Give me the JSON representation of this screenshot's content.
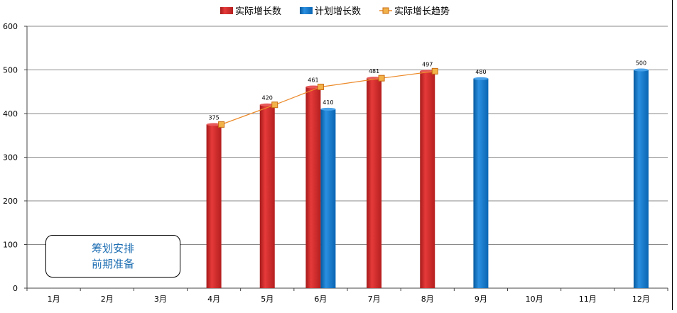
{
  "chart_data": {
    "type": "bar",
    "categories": [
      "1月",
      "2月",
      "3月",
      "4月",
      "5月",
      "6月",
      "7月",
      "8月",
      "9月",
      "10月",
      "11月",
      "12月"
    ],
    "series": [
      {
        "name": "实际增长数",
        "type": "bar",
        "color": "#cc2222",
        "values": [
          null,
          null,
          null,
          375,
          420,
          461,
          481,
          497,
          null,
          null,
          null,
          null
        ]
      },
      {
        "name": "计划增长数",
        "type": "bar",
        "color": "#0b74c9",
        "values": [
          null,
          null,
          null,
          null,
          null,
          410,
          null,
          null,
          480,
          null,
          null,
          500
        ]
      },
      {
        "name": "实际增长趋势",
        "type": "line",
        "color": "#ec8a2a",
        "values": [
          null,
          null,
          null,
          375,
          420,
          461,
          481,
          497,
          null,
          null,
          null,
          null
        ]
      }
    ],
    "ylim": [
      0,
      600
    ],
    "yticks": [
      0,
      100,
      200,
      300,
      400,
      500,
      600
    ],
    "grid": true,
    "legend_position": "top-center",
    "annotation": [
      "筹划安排",
      "前期准备"
    ]
  }
}
